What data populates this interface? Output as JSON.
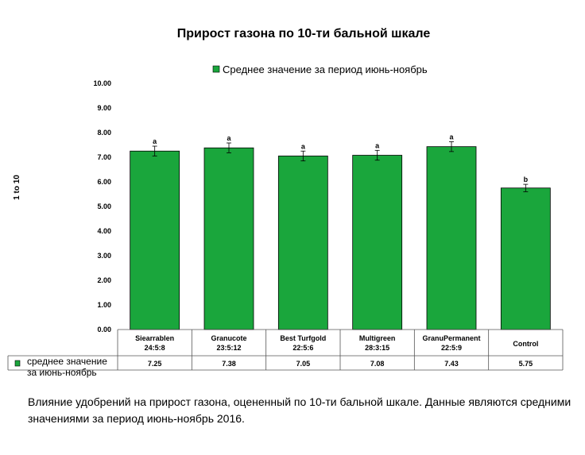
{
  "chart_data": {
    "type": "bar",
    "title": "Прирост газона по 10-ти бальной шкале",
    "ylabel": "1 to 10",
    "ylim": [
      0,
      10
    ],
    "yticks": [
      "0.00",
      "1.00",
      "2.00",
      "3.00",
      "4.00",
      "5.00",
      "6.00",
      "7.00",
      "8.00",
      "9.00",
      "10.00"
    ],
    "grid": false,
    "legend_position": "top",
    "categories": [
      {
        "name": "Siearrablen",
        "sub": "24:5:8"
      },
      {
        "name": "Granucote",
        "sub": "23:5:12"
      },
      {
        "name": "Best Turfgold",
        "sub": "22:5:6"
      },
      {
        "name": "Multigreen",
        "sub": "28:3:15"
      },
      {
        "name": "GranuPermanent",
        "sub": "22:5:9"
      },
      {
        "name": "Control",
        "sub": ""
      }
    ],
    "series": [
      {
        "name": "Среднее значение за период июнь-ноябрь",
        "table_label": "среднее значение за июнь-ноябрь",
        "color": "#1aa63c",
        "values": [
          7.25,
          7.38,
          7.05,
          7.08,
          7.43,
          5.75
        ],
        "value_labels": [
          "7.25",
          "7.38",
          "7.05",
          "7.08",
          "7.43",
          "5.75"
        ],
        "error": [
          0.2,
          0.2,
          0.2,
          0.2,
          0.2,
          0.15
        ],
        "significance": [
          "a",
          "a",
          "a",
          "a",
          "a",
          "b"
        ]
      }
    ]
  },
  "caption": "Влияние удобрений на прирост газона, оцененный по 10-ти бальной шкале. Данные являются средними значениями за период июнь-ноябрь 2016."
}
